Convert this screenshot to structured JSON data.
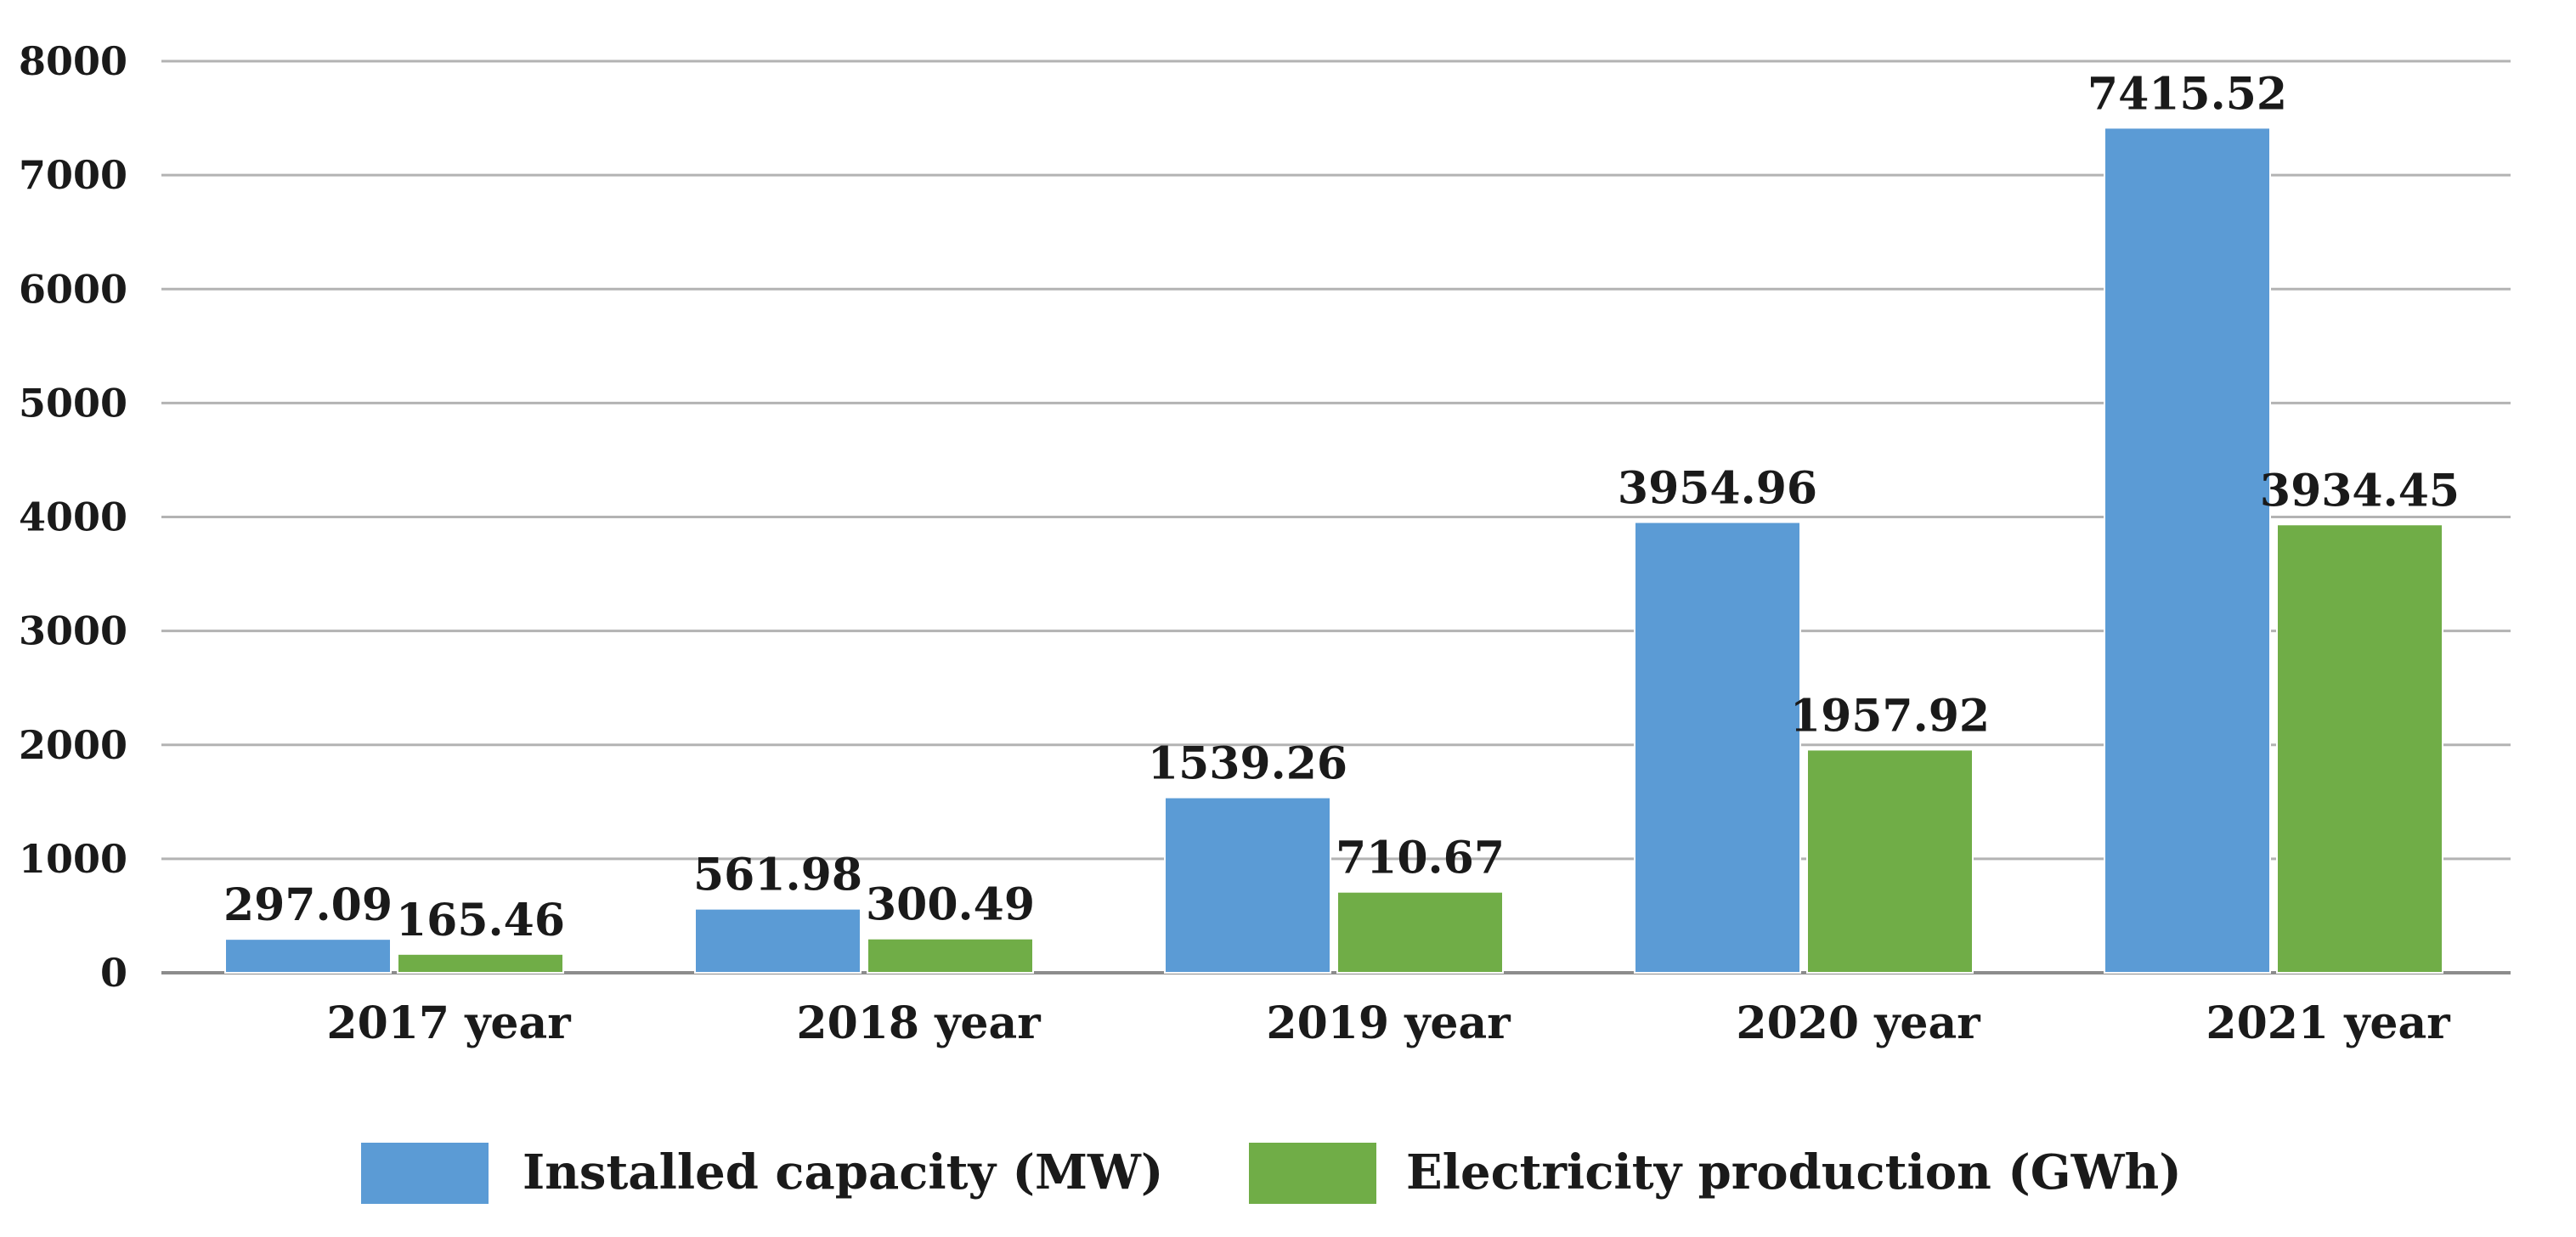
{
  "chart_data": {
    "type": "bar",
    "title": "",
    "xlabel": "",
    "ylabel": "",
    "categories": [
      "2017 year",
      "2018 year",
      "2019 year",
      "2020 year",
      "2021 year"
    ],
    "series": [
      {
        "name": "Installed capacity (MW)",
        "color": "#5b9bd5",
        "values": [
          297.09,
          561.98,
          1539.26,
          3954.96,
          7415.52
        ],
        "labels": [
          "297.09",
          "561.98",
          "1539.26",
          "3954.96",
          "7415.52"
        ]
      },
      {
        "name": "Electricity production (GWh)",
        "color": "#70ad47",
        "values": [
          165.46,
          300.49,
          710.67,
          1957.92,
          3934.45
        ],
        "labels": [
          "165.46",
          "300.49",
          "710.67",
          "1957.92",
          "3934.45"
        ]
      }
    ],
    "ylim": [
      0,
      8000
    ],
    "yticks": [
      "0",
      "1000",
      "2000",
      "3000",
      "4000",
      "5000",
      "6000",
      "7000",
      "8000"
    ],
    "grid": true,
    "legend_position": "bottom"
  }
}
